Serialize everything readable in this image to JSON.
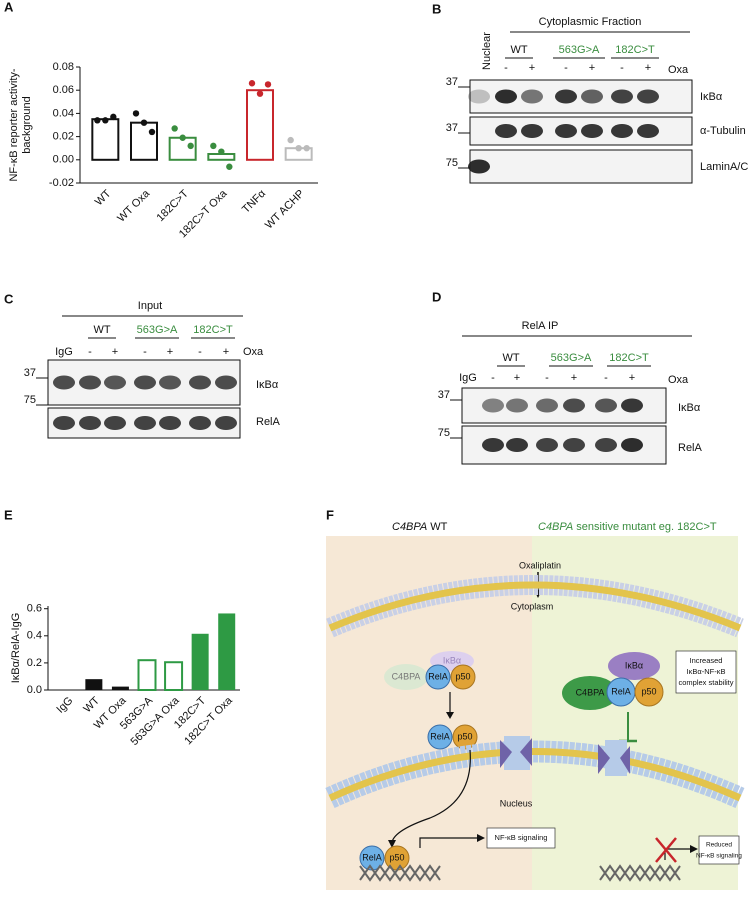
{
  "chart_data": [
    {
      "type": "bar",
      "panel": "A",
      "ylabel": [
        "NF-κB reporter activity-",
        "background"
      ],
      "categories": [
        "WT",
        "WT Oxa",
        "182C>T",
        "182C>T Oxa",
        "TNFα",
        "WT ACHP"
      ],
      "values": [
        0.035,
        0.032,
        0.019,
        0.005,
        0.06,
        0.01
      ],
      "points": [
        [
          0.034,
          0.034,
          0.037
        ],
        [
          0.04,
          0.032,
          0.024
        ],
        [
          0.027,
          0.019,
          0.012
        ],
        [
          0.012,
          0.007,
          -0.006
        ],
        [
          0.066,
          0.057,
          0.065
        ],
        [
          0.017,
          0.01,
          0.01
        ]
      ],
      "colors": [
        "#111111",
        "#111111",
        "#3a8d3f",
        "#3a8d3f",
        "#c8262c",
        "#bbbbbb"
      ],
      "filled": [
        false,
        false,
        false,
        false,
        false,
        false
      ],
      "ylim": [
        -0.02,
        0.08
      ],
      "yticks": [
        -0.02,
        {
          "value": 0,
          "label": "0.00"
        },
        0.02,
        0.04,
        0.06,
        0.08
      ]
    },
    {
      "type": "bar",
      "panel": "E",
      "ylabel": [
        "IκBα/RelA-IgG"
      ],
      "categories": [
        "IgG",
        "WT",
        "WT Oxa",
        "563G>A",
        "563G>A  Oxa",
        "182C>T",
        "182C>T  Oxa"
      ],
      "values": [
        0,
        0.08,
        0.025,
        0.22,
        0.205,
        0.415,
        0.565
      ],
      "colors": [
        "#111111",
        "#111111",
        "#111111",
        "#2e9a44",
        "#2e9a44",
        "#2e9a44",
        "#2e9a44"
      ],
      "filled": [
        true,
        true,
        true,
        false,
        false,
        true,
        true
      ],
      "ylim": [
        0,
        0.62
      ],
      "yticks": [
        {
          "value": 0,
          "label": "0.0"
        },
        0.2,
        0.4,
        0.6
      ]
    }
  ],
  "blots": [
    {
      "panel": "B",
      "fractions": [
        "Nuclear",
        "Cytoplasmic Fraction"
      ],
      "groups": [
        "WT",
        "563G>A",
        "182C>T"
      ],
      "group_colors": [
        "#111111",
        "#3a8d3f",
        "#3a8d3f"
      ],
      "lanes": [
        "-",
        "+",
        "-",
        "+",
        "-",
        "+"
      ],
      "treatment": "Oxa",
      "markers": [
        37,
        37,
        75
      ],
      "rows": [
        "IκBα",
        "α-Tubulin",
        "LaminA/C"
      ]
    },
    {
      "panel": "C",
      "heading": "Input",
      "control": "IgG",
      "groups": [
        "WT",
        "563G>A",
        "182C>T"
      ],
      "group_colors": [
        "#111111",
        "#3a8d3f",
        "#3a8d3f"
      ],
      "lanes": [
        "-",
        "+",
        "-",
        "+",
        "-",
        "+"
      ],
      "treatment": "Oxa",
      "markers": [
        37,
        75
      ],
      "rows": [
        "IκBα",
        "RelA"
      ]
    },
    {
      "panel": "D",
      "heading": "RelA IP",
      "control": "IgG",
      "groups": [
        "WT",
        "563G>A",
        "182C>T"
      ],
      "group_colors": [
        "#111111",
        "#3a8d3f",
        "#3a8d3f"
      ],
      "lanes": [
        "-",
        "+",
        "-",
        "+",
        "-",
        "+"
      ],
      "treatment": "Oxa",
      "markers": [
        37,
        75
      ],
      "rows": [
        "IκBα",
        "RelA"
      ]
    }
  ],
  "diagram": {
    "panel": "F",
    "left_title": {
      "gene": "C4BPA",
      "text": "WT"
    },
    "right_title": {
      "gene": "C4BPA",
      "text": "sensitive mutant eg. 182C>T"
    },
    "drug": "Oxaliplatin",
    "cytoplasm": "Cytoplasm",
    "nucleus": "Nucleus",
    "left_complex": {
      "ikba": "IκBα",
      "rela": "RelA",
      "p50": "p50",
      "c4bpa": "C4BPA"
    },
    "left_translocated": {
      "rela": "RelA",
      "p50": "p50"
    },
    "left_nuclear": {
      "rela": "RelA",
      "p50": "p50"
    },
    "left_outcome": "NF-κB signaling",
    "right_complex": {
      "ikba": "IκBα",
      "rela": "RelA",
      "p50": "p50",
      "c4bpa": "C4BPA"
    },
    "right_note": [
      "Increased",
      "IκBα-NF-κB",
      "complex stability"
    ],
    "right_outcome": [
      "Reduced",
      "NF-κB signaling"
    ]
  }
}
